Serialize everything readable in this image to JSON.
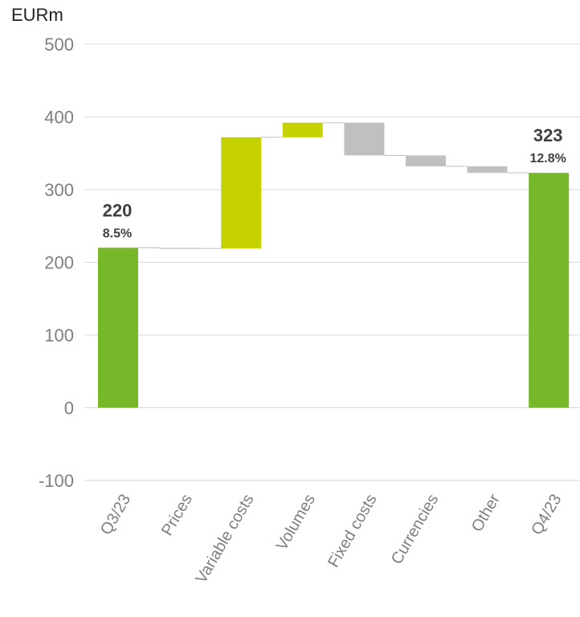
{
  "chart_data": {
    "type": "waterfall",
    "unit": "EURm",
    "categories": [
      "Q3/23",
      "Prices",
      "Variable costs",
      "Volumes",
      "Fixed costs",
      "Currencies",
      "Other",
      "Q4/23"
    ],
    "bars": [
      {
        "label": "Q3/23",
        "kind": "total",
        "start": 0,
        "end": 220,
        "color": "#76b82a"
      },
      {
        "label": "Prices",
        "kind": "delta",
        "start": 220,
        "end": 219,
        "color": "#c8c8c8"
      },
      {
        "label": "Variable costs",
        "kind": "delta",
        "start": 219,
        "end": 372,
        "color": "#c5d200"
      },
      {
        "label": "Volumes",
        "kind": "delta",
        "start": 372,
        "end": 392,
        "color": "#c5d200"
      },
      {
        "label": "Fixed costs",
        "kind": "delta",
        "start": 392,
        "end": 347,
        "color": "#c0c0c0"
      },
      {
        "label": "Currencies",
        "kind": "delta",
        "start": 347,
        "end": 332,
        "color": "#c0c0c0"
      },
      {
        "label": "Other",
        "kind": "delta",
        "start": 332,
        "end": 323,
        "color": "#c0c0c0"
      },
      {
        "label": "Q4/23",
        "kind": "total",
        "start": 0,
        "end": 323,
        "color": "#76b82a"
      }
    ],
    "annotations": [
      {
        "label": "Q3/23",
        "value": "220",
        "margin": "8.5%"
      },
      {
        "label": "Q4/23",
        "value": "323",
        "margin": "12.8%"
      }
    ],
    "ylim": [
      -100,
      500
    ],
    "yticks": [
      -100,
      0,
      100,
      200,
      300,
      400,
      500
    ],
    "grid": true,
    "legend": "none"
  },
  "colors": {
    "total": "#76b82a",
    "positive": "#c5d200",
    "negative": "#c0c0c0",
    "grid": "#d9d9d9",
    "axis_text": "#7f7f7f",
    "annotation_text": "#404040"
  }
}
